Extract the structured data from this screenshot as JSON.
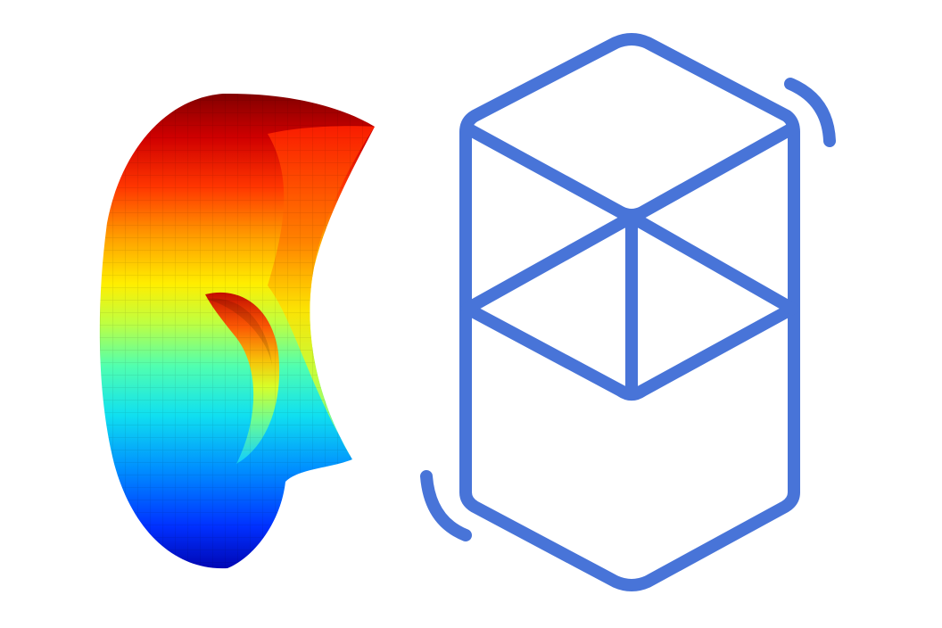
{
  "artwork": {
    "surface": {
      "name": "colored-3d-surface",
      "colormap": [
        "#00008b",
        "#0000ff",
        "#0080ff",
        "#00e5ff",
        "#40ffbf",
        "#bfff40",
        "#ffff00",
        "#ff9900",
        "#ff2a00",
        "#b80000",
        "#800000"
      ]
    },
    "logo": {
      "name": "fantom-cube-logo",
      "stroke_color": "#4874d8"
    }
  }
}
